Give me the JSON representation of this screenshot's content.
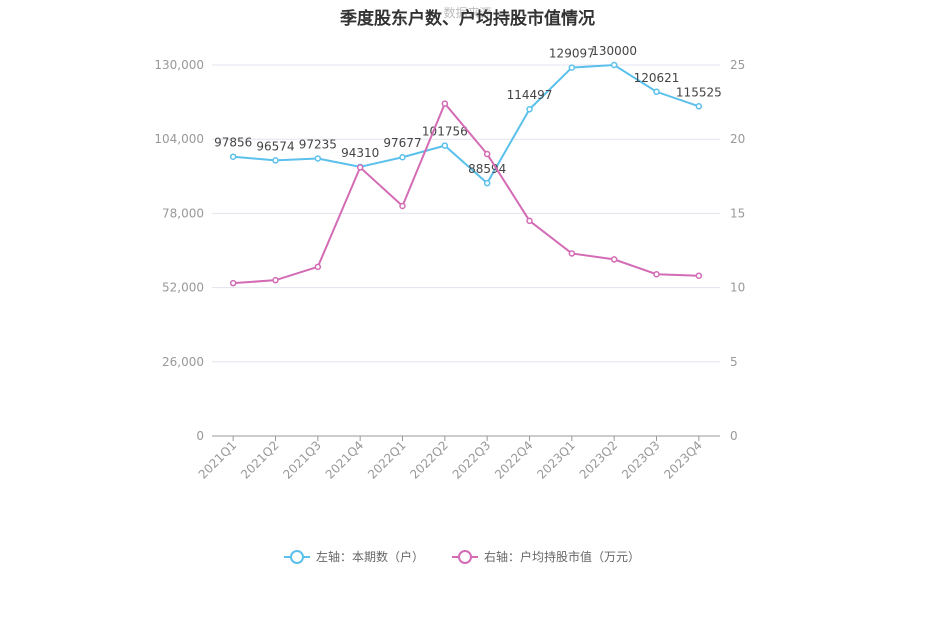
{
  "chart_data": {
    "type": "line",
    "title": "季度股东户数、户均持股市值情况",
    "watermark": "数据来源",
    "categories": [
      "2021Q1",
      "2021Q2",
      "2021Q3",
      "2021Q4",
      "2022Q1",
      "2022Q2",
      "2022Q3",
      "2022Q4",
      "2023Q1",
      "2023Q2",
      "2023Q3",
      "2023Q4"
    ],
    "y_left": {
      "ticks": [
        "0",
        "26,000",
        "52,000",
        "78,000",
        "104,000",
        "130,000"
      ],
      "ylim": [
        0,
        130000
      ]
    },
    "y_right": {
      "ticks": [
        "0",
        "5",
        "10",
        "15",
        "20",
        "25"
      ],
      "ylim": [
        0,
        25
      ]
    },
    "grid": true,
    "legend_position": "bottom-center",
    "series": [
      {
        "name": "左轴：本期数（户）",
        "axis": "left",
        "color": "#5bc0eb",
        "values": [
          97856,
          96574,
          97235,
          94310,
          97677,
          101756,
          88594,
          114497,
          129097,
          130000,
          120621,
          115525
        ],
        "labels": [
          "97856",
          "96574",
          "97235",
          "94310",
          "97677",
          "101756",
          "88594",
          "114497",
          "129097",
          "130000",
          "120621",
          "115525"
        ]
      },
      {
        "name": "右轴：户均持股市值（万元）",
        "axis": "right",
        "color": "#d36bb5",
        "values": [
          10.3,
          10.5,
          11.4,
          18.1,
          15.5,
          22.4,
          19.0,
          14.5,
          12.3,
          11.9,
          10.9,
          10.8
        ]
      }
    ]
  }
}
